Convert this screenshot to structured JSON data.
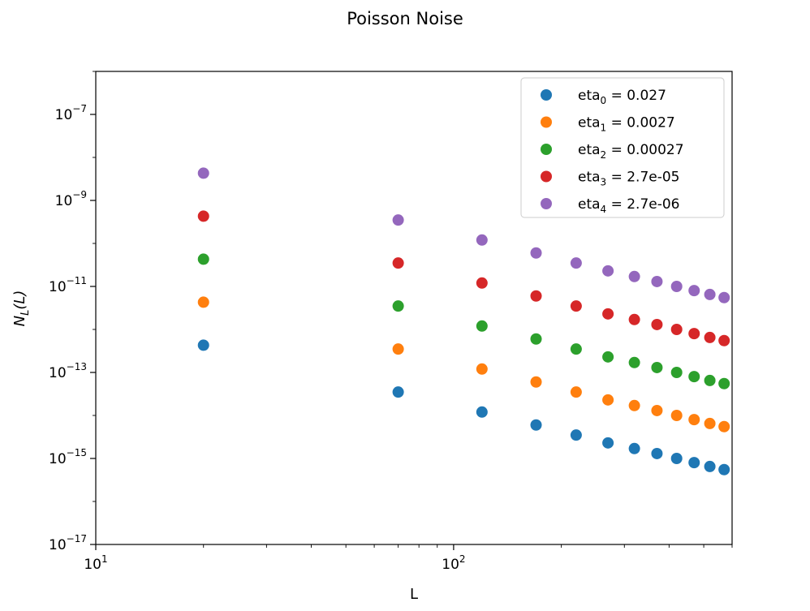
{
  "chart_data": {
    "type": "scatter",
    "title": "Poisson Noise",
    "xlabel": "L",
    "ylabel_main": "N",
    "ylabel_sub": "L",
    "ylabel_arg": "(L)",
    "xscale": "log",
    "yscale": "log",
    "xlim": [
      10,
      600
    ],
    "ylim": [
      1e-17,
      1e-06
    ],
    "x_ticks": [
      {
        "value": 10,
        "base": "10",
        "exp": "1"
      },
      {
        "value": 100,
        "base": "10",
        "exp": "2"
      }
    ],
    "y_ticks": [
      {
        "value": 1e-17,
        "base": "10",
        "exp": "−17"
      },
      {
        "value": 1e-15,
        "base": "10",
        "exp": "−15"
      },
      {
        "value": 1e-13,
        "base": "10",
        "exp": "−13"
      },
      {
        "value": 1e-11,
        "base": "10",
        "exp": "−11"
      },
      {
        "value": 1e-09,
        "base": "10",
        "exp": "−9"
      },
      {
        "value": 1e-07,
        "base": "10",
        "exp": "−7"
      }
    ],
    "grid": false,
    "legend_position": "upper-right",
    "x": [
      20,
      70,
      120,
      170,
      220,
      270,
      320,
      370,
      420,
      470,
      520,
      570
    ],
    "series": [
      {
        "name": "eta",
        "subscript": "0",
        "suffix": " = 0.027",
        "color": "#1f77b4",
        "values": [
          4.3e-13,
          3.5e-14,
          1.2e-14,
          6e-15,
          3.5e-15,
          2.3e-15,
          1.7e-15,
          1.3e-15,
          1e-15,
          8e-16,
          6.5e-16,
          5.5e-16
        ]
      },
      {
        "name": "eta",
        "subscript": "1",
        "suffix": " = 0.0027",
        "color": "#ff7f0e",
        "values": [
          4.3e-12,
          3.5e-13,
          1.2e-13,
          6e-14,
          3.5e-14,
          2.3e-14,
          1.7e-14,
          1.3e-14,
          1e-14,
          8e-15,
          6.5e-15,
          5.5e-15
        ]
      },
      {
        "name": "eta",
        "subscript": "2",
        "suffix": " = 0.00027",
        "color": "#2ca02c",
        "values": [
          4.3e-11,
          3.5e-12,
          1.2e-12,
          6e-13,
          3.5e-13,
          2.3e-13,
          1.7e-13,
          1.3e-13,
          1e-13,
          8e-14,
          6.5e-14,
          5.5e-14
        ]
      },
      {
        "name": "eta",
        "subscript": "3",
        "suffix": " = 2.7e-05",
        "color": "#d62728",
        "values": [
          4.3e-10,
          3.5e-11,
          1.2e-11,
          6e-12,
          3.5e-12,
          2.3e-12,
          1.7e-12,
          1.3e-12,
          1e-12,
          8e-13,
          6.5e-13,
          5.5e-13
        ]
      },
      {
        "name": "eta",
        "subscript": "4",
        "suffix": " = 2.7e-06",
        "color": "#9467bd",
        "values": [
          4.3e-09,
          3.5e-10,
          1.2e-10,
          6e-11,
          3.5e-11,
          2.3e-11,
          1.7e-11,
          1.3e-11,
          1e-11,
          8e-12,
          6.5e-12,
          5.5e-12
        ]
      }
    ]
  }
}
